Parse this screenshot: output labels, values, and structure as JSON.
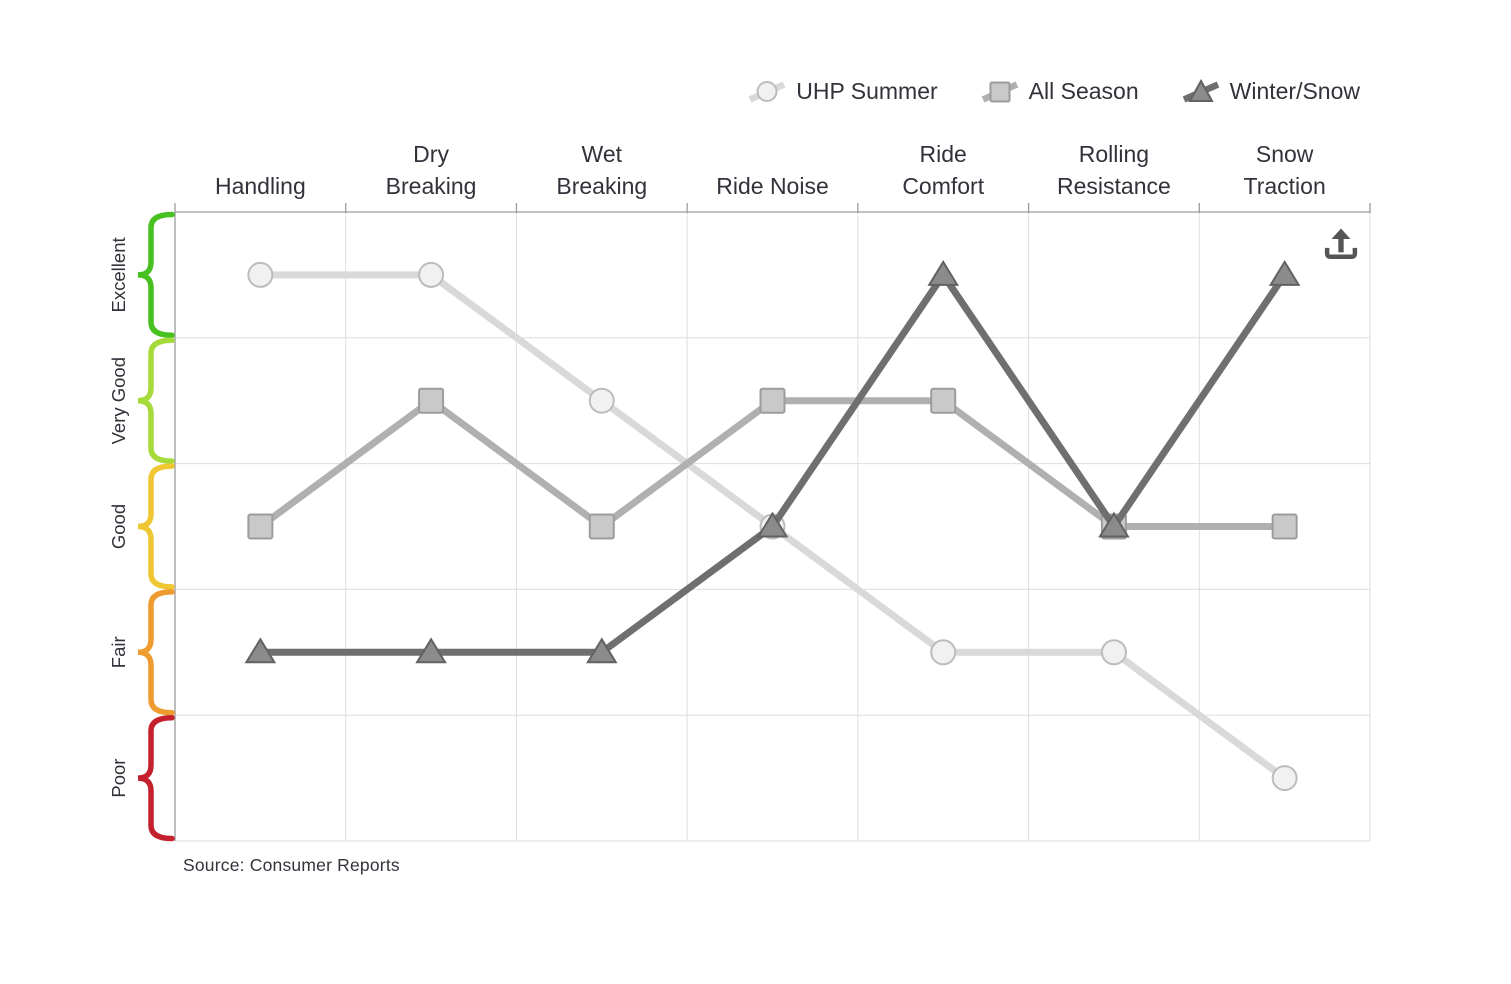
{
  "legend": {
    "items": [
      {
        "label": "UHP Summer",
        "marker": "circle"
      },
      {
        "label": "All Season",
        "marker": "square"
      },
      {
        "label": "Winter/Snow",
        "marker": "triangle"
      }
    ]
  },
  "icons": {
    "export": "export-upload-icon"
  },
  "source_text": "Source: Consumer Reports",
  "chart_data": {
    "type": "line",
    "title": "",
    "xlabel": "",
    "ylabel": "",
    "categories": [
      "Handling",
      "Dry Breaking",
      "Wet Breaking",
      "Ride Noise",
      "Ride Comfort",
      "Rolling Resistance",
      "Snow Traction"
    ],
    "category_lines": [
      [
        "Handling"
      ],
      [
        "Dry",
        "Breaking"
      ],
      [
        "Wet",
        "Breaking"
      ],
      [
        "Ride Noise"
      ],
      [
        "Ride",
        "Comfort"
      ],
      [
        "Rolling",
        "Resistance"
      ],
      [
        "Snow",
        "Traction"
      ]
    ],
    "rating_scale": [
      {
        "label": "Excellent",
        "value": 5,
        "color": "#47c120"
      },
      {
        "label": "Very Good",
        "value": 4,
        "color": "#a6d93a"
      },
      {
        "label": "Good",
        "value": 3,
        "color": "#eec733"
      },
      {
        "label": "Fair",
        "value": 2,
        "color": "#ee9b30"
      },
      {
        "label": "Poor",
        "value": 1,
        "color": "#c5202e"
      }
    ],
    "ylim": [
      0.5,
      5.5
    ],
    "grid": true,
    "legend_position": "top-right",
    "series": [
      {
        "name": "UHP Summer",
        "marker": "circle",
        "line_color": "#d9d9d9",
        "marker_fill": "#f1f1f1",
        "marker_stroke": "#bcbcbc",
        "ratings": [
          "Excellent",
          "Excellent",
          "Very Good",
          "Good",
          "Fair",
          "Fair",
          "Poor"
        ],
        "values": [
          5,
          5,
          4,
          3,
          2,
          2,
          1
        ]
      },
      {
        "name": "All Season",
        "marker": "square",
        "line_color": "#b0b0b0",
        "marker_fill": "#c9c9c9",
        "marker_stroke": "#9c9c9c",
        "ratings": [
          "Good",
          "Very Good",
          "Good",
          "Very Good",
          "Very Good",
          "Good",
          "Good"
        ],
        "values": [
          3,
          4,
          3,
          4,
          4,
          3,
          3
        ]
      },
      {
        "name": "Winter/Snow",
        "marker": "triangle",
        "line_color": "#6f6f6f",
        "marker_fill": "#8b8b8b",
        "marker_stroke": "#626262",
        "ratings": [
          "Fair",
          "Fair",
          "Fair",
          "Good",
          "Excellent",
          "Good",
          "Excellent"
        ],
        "values": [
          2,
          2,
          2,
          3,
          5,
          3,
          5
        ]
      }
    ],
    "source": "Source: Consumer Reports"
  }
}
